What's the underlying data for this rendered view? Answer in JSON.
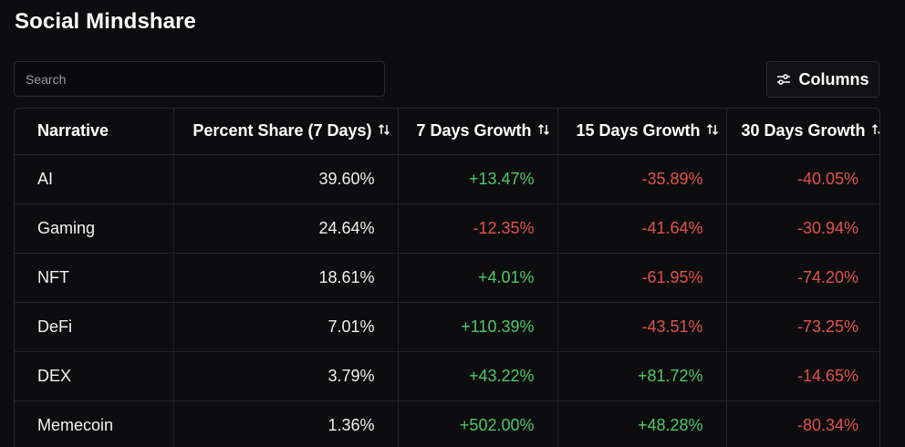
{
  "title": "Social Mindshare",
  "search": {
    "placeholder": "Search",
    "value": ""
  },
  "columns_button": {
    "label": "Columns",
    "icon": "sliders-icon"
  },
  "colors": {
    "positive": "#4fc76a",
    "negative": "#e0524d",
    "background": "#0d0d0f"
  },
  "table": {
    "headers": [
      {
        "label": "Narrative",
        "sortable": false
      },
      {
        "label": "Percent Share (7 Days)",
        "sortable": true
      },
      {
        "label": "7 Days Growth",
        "sortable": true
      },
      {
        "label": "15 Days Growth",
        "sortable": true
      },
      {
        "label": "30 Days Growth",
        "sortable": true
      }
    ],
    "rows": [
      {
        "narrative": "AI",
        "share": "39.60%",
        "g7": "+13.47%",
        "g15": "-35.89%",
        "g30": "-40.05%"
      },
      {
        "narrative": "Gaming",
        "share": "24.64%",
        "g7": "-12.35%",
        "g15": "-41.64%",
        "g30": "-30.94%"
      },
      {
        "narrative": "NFT",
        "share": "18.61%",
        "g7": "+4.01%",
        "g15": "-61.95%",
        "g30": "-74.20%"
      },
      {
        "narrative": "DeFi",
        "share": "7.01%",
        "g7": "+110.39%",
        "g15": "-43.51%",
        "g30": "-73.25%"
      },
      {
        "narrative": "DEX",
        "share": "3.79%",
        "g7": "+43.22%",
        "g15": "+81.72%",
        "g30": "-14.65%"
      },
      {
        "narrative": "Memecoin",
        "share": "1.36%",
        "g7": "+502.00%",
        "g15": "+48.28%",
        "g30": "-80.34%"
      }
    ]
  }
}
